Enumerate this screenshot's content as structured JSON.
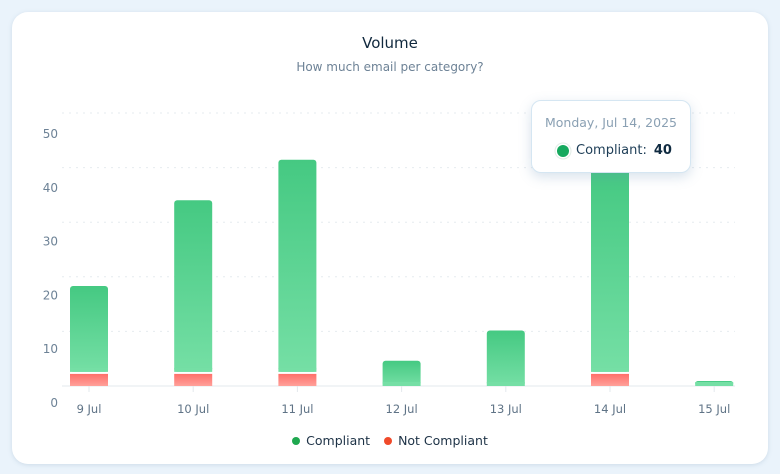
{
  "chart_data": {
    "type": "bar",
    "stacked": true,
    "title": "Volume",
    "subtitle": "How much email per category?",
    "categories": [
      "9 Jul",
      "10 Jul",
      "11 Jul",
      "12 Jul",
      "13 Jul",
      "14 Jul",
      "15 Jul"
    ],
    "series": [
      {
        "name": "Compliant",
        "values": [
          17,
          34,
          42,
          5,
          11,
          40,
          1
        ],
        "color": "#4ccb85"
      },
      {
        "name": "Not Compliant",
        "values": [
          2,
          2,
          2,
          0,
          0,
          2,
          0
        ],
        "color": "#ff7b73"
      }
    ],
    "yticks": [
      0,
      10,
      20,
      30,
      40,
      50
    ],
    "ylim": [
      0,
      50
    ],
    "grid": true,
    "legend_position": "bottom"
  },
  "legend": {
    "items": [
      {
        "label": "Compliant",
        "color": "#1fa84f"
      },
      {
        "label": "Not Compliant",
        "color": "#f04a2a"
      }
    ]
  },
  "tooltip": {
    "date": "Monday, Jul 14, 2025",
    "label": "Compliant:",
    "value": "40"
  }
}
